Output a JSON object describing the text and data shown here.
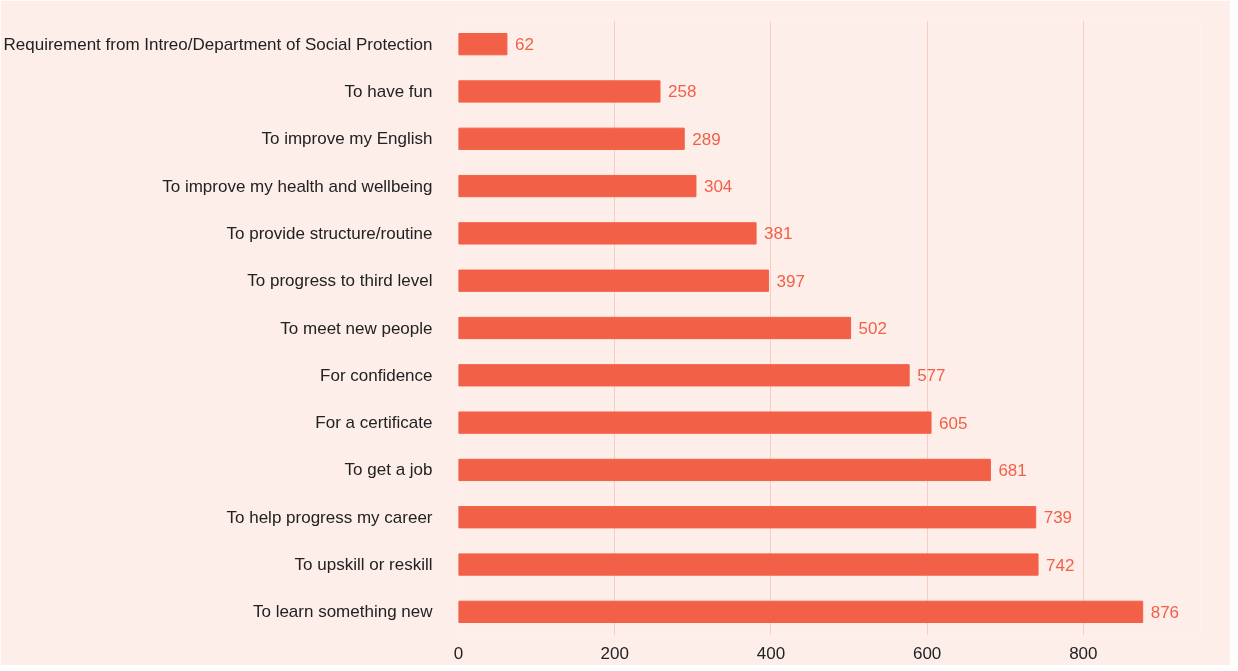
{
  "chart_data": {
    "type": "bar",
    "orientation": "horizontal",
    "categories": [
      "Requirement from Intreo/Department of Social Protection",
      "To have fun",
      "To improve my English",
      "To improve my health and wellbeing",
      "To provide structure/routine",
      "To progress to third level",
      "To meet new people",
      "For confidence",
      "For a certificate",
      "To get a job",
      "To help progress my career",
      "To upskill or reskill",
      "To learn something new"
    ],
    "values": [
      62,
      258,
      289,
      304,
      381,
      397,
      502,
      577,
      605,
      681,
      739,
      742,
      876
    ],
    "color": "#f26047",
    "xlim": [
      0,
      950
    ],
    "xticks": [
      0,
      200,
      400,
      600,
      800
    ],
    "grid": "x",
    "data_labels": true
  }
}
